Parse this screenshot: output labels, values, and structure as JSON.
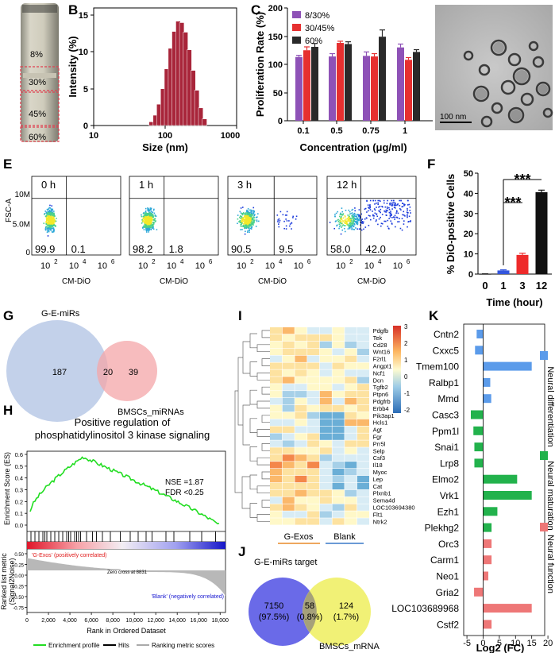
{
  "panel_letters": [
    "A",
    "B",
    "C",
    "D",
    "E",
    "F",
    "G",
    "H",
    "I",
    "J",
    "K"
  ],
  "panel_a": {
    "fractions": [
      "8%",
      "30%",
      "45%",
      "60%"
    ]
  },
  "panel_b": {
    "xlabel": "Size (nm)",
    "ylabel": "Intensity (%)",
    "xticks": [
      "10",
      "100",
      "1000"
    ],
    "yticks": [
      "0",
      "5",
      "10",
      "15"
    ]
  },
  "panel_c": {
    "ylabel": "Proliferation Rate (%)",
    "xlabel": "Concentration (μg/ml)",
    "yticks": [
      "0",
      "50",
      "100",
      "150",
      "200"
    ]
  },
  "panel_d": {
    "scalebar": "100 nm"
  },
  "panel_e": {
    "ylabel": "FSC-A",
    "xlabel": "CM-DiO",
    "yticks": [
      "0",
      "5.0M",
      "10M"
    ],
    "xtick_bases": [
      "10",
      "10",
      "10"
    ],
    "xtick_exps": [
      "2",
      "4",
      "6"
    ],
    "plots": [
      {
        "time": "0 h",
        "left": "99.9",
        "right": "0.1"
      },
      {
        "time": "1 h",
        "left": "98.2",
        "right": "1.8"
      },
      {
        "time": "3 h",
        "left": "90.5",
        "right": "9.5"
      },
      {
        "time": "12 h",
        "left": "58.0",
        "right": "42.0"
      }
    ]
  },
  "panel_f": {
    "ylabel": "% DiO-positive Cells",
    "xlabel": "Time (hour)",
    "yticks": [
      "0",
      "10",
      "20",
      "30",
      "40",
      "50"
    ],
    "sig": [
      "***",
      "***"
    ]
  },
  "panel_g": {
    "left_label": "G-E-miRs",
    "right_label": "BMSCs_miRNAs",
    "left": "187",
    "overlap": "20",
    "right": "39"
  },
  "panel_h": {
    "title_line1": "Positive regulation of",
    "title_line2": "phosphatidylinositol 3 kinase signaling",
    "es_label": "Enrichment Score (ES)",
    "es_ticks": [
      "0.6",
      "0.5",
      "0.4",
      "0.3",
      "0.2",
      "0.1",
      "0.0"
    ],
    "nse": "NSE =1.87",
    "fdr": "FDR <0.25",
    "pos_label": "'G-Exos' (positively correlated)",
    "neg_label": "'Blank' (negatively correlated)",
    "zero_cross": "Zero cross at 8831",
    "metric_label_1": "Ranked list metric",
    "metric_label_2": "(Signal2Noise)",
    "metric_ticks": [
      "0.50",
      "0.25",
      "0.00",
      "-0.25",
      "-0.50",
      "-0.75"
    ],
    "rank_label": "Rank in Ordered Dataset",
    "rank_ticks": [
      "0",
      "2,000",
      "4,000",
      "6,000",
      "8,000",
      "10,000",
      "12,000",
      "14,000",
      "16,000",
      "18,000"
    ],
    "legend": [
      "Enrichment profile",
      "Hits",
      "Ranking metric scores"
    ]
  },
  "panel_i": {
    "group_labels": [
      "G-Exos",
      "Blank"
    ],
    "scale_ticks": [
      "3",
      "2",
      "1",
      "0",
      "-1",
      "-2"
    ],
    "genes": [
      "Pdgfb",
      "Tek",
      "Cd28",
      "Wnt16",
      "F2rl1",
      "Angpt1",
      "Ncf1",
      "Dcn",
      "Tgfb2",
      "Ptpn6",
      "Pdgfrb",
      "Erbb4",
      "Pik3ap1",
      "Hcls1",
      "Agt",
      "Fgr",
      "Prr5l",
      "Selp",
      "Csf3",
      "Il18",
      "Myoc",
      "Lep",
      "Cat",
      "Plxnb1",
      "Sema4d",
      "LOC103694380",
      "Flt1",
      "Ntrk2"
    ]
  },
  "panel_j": {
    "left_label": "G-E-miRs target",
    "right_label": "BMSCs_mRNA",
    "left_n": "7150",
    "left_p": "(97.5%)",
    "mid_n": "58",
    "mid_p": "(0.8%)",
    "right_n": "124",
    "right_p": "(1.7%)"
  },
  "panel_k": {
    "xlabel": "Log2 (FC)",
    "xticks": [
      "-5",
      "0",
      "5",
      "10",
      "15",
      "20"
    ],
    "category_labels": [
      "Neural differentiation",
      "Neural maturation",
      "Neural function"
    ],
    "colors": {
      "differentiation": "#5b9bea",
      "maturation": "#22b24c",
      "function": "#ee7777"
    }
  },
  "chart_data": [
    {
      "type": "bar",
      "panel": "B",
      "xlabel": "Size (nm)",
      "ylabel": "Intensity (%)",
      "xscale": "log",
      "xlim": [
        10,
        1000
      ],
      "ylim": [
        0,
        16
      ],
      "x": [
        64,
        73,
        82,
        93,
        105,
        119,
        134,
        152,
        171,
        193,
        218,
        247,
        278,
        315,
        356
      ],
      "values": [
        0.5,
        1.4,
        2.9,
        5.0,
        7.7,
        10.5,
        12.8,
        14.2,
        14.0,
        12.7,
        10.3,
        7.5,
        4.8,
        2.4,
        0.9
      ]
    },
    {
      "type": "bar",
      "panel": "C",
      "xlabel": "Concentration (μg/ml)",
      "ylabel": "Proliferation Rate (%)",
      "ylim": [
        0,
        200
      ],
      "categories": [
        "0.1",
        "0.5",
        "0.75",
        "1"
      ],
      "series": [
        {
          "name": "8/30%",
          "color": "#8e52b7",
          "values": [
            113,
            114,
            115,
            130
          ],
          "err": [
            3,
            5,
            7,
            6
          ]
        },
        {
          "name": "30/45%",
          "color": "#e63030",
          "values": [
            125,
            138,
            114,
            108
          ],
          "err": [
            6,
            3,
            5,
            4
          ]
        },
        {
          "name": "60%",
          "color": "#2a2a2a",
          "values": [
            131,
            136,
            149,
            122
          ],
          "err": [
            6,
            4,
            12,
            4
          ]
        }
      ]
    },
    {
      "type": "bar",
      "panel": "F",
      "xlabel": "Time (hour)",
      "ylabel": "% DiO-positive Cells",
      "ylim": [
        0,
        50
      ],
      "categories": [
        "0",
        "1",
        "3",
        "12"
      ],
      "values": [
        0.1,
        1.8,
        9.5,
        40.6
      ],
      "err": [
        0.05,
        0.3,
        0.8,
        1.0
      ],
      "colors": [
        "#2a2a2a",
        "#3355dd",
        "#ee2a2a",
        "#111111"
      ]
    },
    {
      "type": "bar",
      "panel": "K",
      "orientation": "horizontal",
      "xlabel": "Log2 (FC)",
      "xlim": [
        -5,
        20
      ],
      "categories": [
        "Cntn2",
        "Cxxc5",
        "Tmem100",
        "Ralbp1",
        "Mmd",
        "Casc3",
        "Ppm1l",
        "Snai1",
        "Lrp8",
        "Elmo2",
        "Vrk1",
        "Ezh1",
        "Plekhg2",
        "Orc3",
        "Carm1",
        "Neo1",
        "Gria2",
        "LOC103689968",
        "Cstf2"
      ],
      "values": [
        -2,
        -2.5,
        15,
        2.2,
        2.5,
        -3.8,
        -3,
        -2.7,
        -2.7,
        10.5,
        15,
        4.4,
        2.6,
        2.6,
        2.6,
        1.6,
        -2.8,
        15,
        2.6
      ],
      "groups": [
        "d",
        "d",
        "d",
        "d",
        "d",
        "m",
        "m",
        "m",
        "m",
        "m",
        "m",
        "m",
        "m",
        "f",
        "f",
        "f",
        "f",
        "f",
        "f"
      ]
    }
  ]
}
